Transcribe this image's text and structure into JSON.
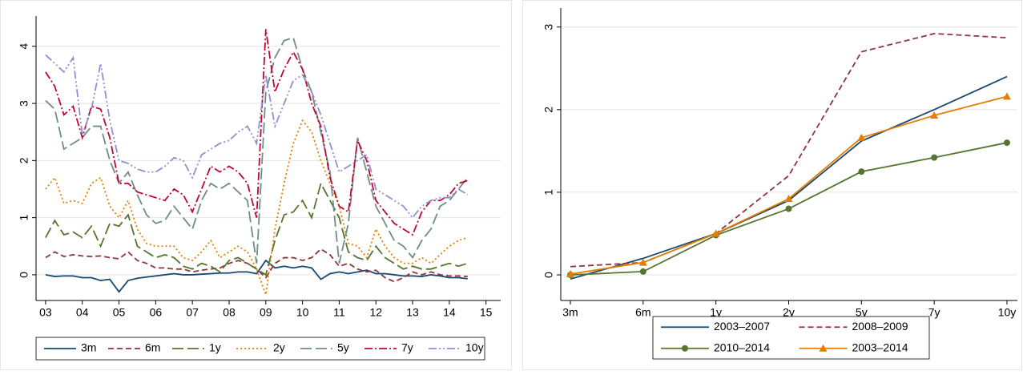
{
  "chart_data": [
    {
      "type": "line",
      "x": [
        2003,
        2003.25,
        2003.5,
        2003.75,
        2004,
        2004.25,
        2004.5,
        2004.75,
        2005,
        2005.25,
        2005.5,
        2005.75,
        2006,
        2006.25,
        2006.5,
        2006.75,
        2007,
        2007.25,
        2007.5,
        2007.75,
        2008,
        2008.25,
        2008.5,
        2008.75,
        2009,
        2009.25,
        2009.5,
        2009.75,
        2010,
        2010.25,
        2010.5,
        2010.75,
        2011,
        2011.25,
        2011.5,
        2011.75,
        2012,
        2012.25,
        2012.5,
        2012.75,
        2013,
        2013.25,
        2013.5,
        2013.75,
        2014,
        2014.25,
        2014.5
      ],
      "xlim": [
        2002.74,
        2015.4
      ],
      "xticks": [
        {
          "value": 2003,
          "label": "03"
        },
        {
          "value": 2004,
          "label": "04"
        },
        {
          "value": 2005,
          "label": "05"
        },
        {
          "value": 2006,
          "label": "06"
        },
        {
          "value": 2007,
          "label": "07"
        },
        {
          "value": 2008,
          "label": "08"
        },
        {
          "value": 2009,
          "label": "09"
        },
        {
          "value": 2010,
          "label": "10"
        },
        {
          "value": 2011,
          "label": "11"
        },
        {
          "value": 2012,
          "label": "12"
        },
        {
          "value": 2013,
          "label": "13"
        },
        {
          "value": 2014,
          "label": "14"
        },
        {
          "value": 2015,
          "label": "15"
        }
      ],
      "ylim": [
        -0.45,
        4.53
      ],
      "yticks": [
        0,
        1,
        2,
        3,
        4
      ],
      "grid": true,
      "series": [
        {
          "name": "3m",
          "color": "#1a476f",
          "dash": "solid",
          "values": [
            0,
            -0.03,
            -0.02,
            -0.02,
            -0.05,
            -0.05,
            -0.1,
            -0.08,
            -0.3,
            -0.1,
            -0.06,
            -0.04,
            -0.02,
            0,
            0.02,
            0,
            0,
            0.01,
            0.02,
            0.03,
            0.03,
            0.05,
            0.05,
            0.02,
            0.25,
            0.12,
            0.15,
            0.12,
            0.15,
            0.12,
            -0.08,
            0.02,
            0.05,
            0.02,
            0.05,
            0.08,
            0.02,
            0.02,
            0,
            -0.02,
            -0.02,
            -0.03,
            0,
            -0.02,
            -0.05,
            -0.05,
            -0.07
          ]
        },
        {
          "name": "6m",
          "color": "#90353b",
          "dash": "dashed",
          "values": [
            0.3,
            0.4,
            0.32,
            0.35,
            0.33,
            0.32,
            0.33,
            0.3,
            0.28,
            0.4,
            0.25,
            0.2,
            0.12,
            0.12,
            0.1,
            0.1,
            0.05,
            0.08,
            0.1,
            0.12,
            0.2,
            0.25,
            0.2,
            0.1,
            -0.05,
            0.2,
            0.3,
            0.3,
            0.25,
            0.3,
            0.45,
            0.35,
            0.15,
            0.2,
            0.1,
            0.05,
            0.08,
            -0.05,
            -0.12,
            -0.05,
            0.05,
            0,
            0.05,
            0,
            -0.02,
            -0.02,
            -0.03
          ]
        },
        {
          "name": "1y",
          "color": "#55752f",
          "dash": "longdash",
          "values": [
            0.65,
            0.95,
            0.7,
            0.75,
            0.65,
            0.85,
            0.5,
            0.9,
            0.85,
            1.05,
            0.5,
            0.4,
            0.3,
            0.35,
            0.3,
            0.15,
            0.1,
            0.2,
            0.15,
            0.05,
            0.25,
            0.3,
            0.2,
            0.1,
            0,
            0.6,
            1.05,
            1.1,
            1.3,
            1.0,
            1.6,
            1.3,
            1.0,
            0.4,
            0.3,
            0.25,
            0.5,
            0.3,
            0.2,
            0.1,
            0.15,
            0.1,
            0.1,
            0.15,
            0.2,
            0.15,
            0.2
          ]
        },
        {
          "name": "2y",
          "color": "#e37e00",
          "dash": "dotted",
          "values": [
            1.5,
            1.7,
            1.25,
            1.3,
            1.25,
            1.6,
            1.7,
            1.2,
            1.0,
            1.3,
            0.8,
            0.55,
            0.5,
            0.5,
            0.5,
            0.3,
            0.25,
            0.4,
            0.6,
            0.3,
            0.4,
            0.5,
            0.4,
            0.1,
            -0.35,
            0.8,
            1.6,
            2.3,
            2.7,
            2.5,
            2.0,
            1.6,
            1.2,
            0.55,
            0.5,
            0.3,
            0.8,
            0.5,
            0.3,
            0.2,
            0.2,
            0.3,
            0.2,
            0.35,
            0.5,
            0.6,
            0.65
          ]
        },
        {
          "name": "5y",
          "color": "#6e8e84",
          "dash": "longdash",
          "values": [
            3.05,
            2.9,
            2.2,
            2.3,
            2.4,
            2.6,
            2.6,
            2.0,
            1.6,
            1.8,
            1.4,
            1.05,
            0.9,
            0.95,
            1.2,
            1.0,
            0.8,
            1.3,
            1.6,
            1.5,
            1.6,
            1.45,
            1.3,
            0.2,
            3.2,
            3.8,
            4.1,
            4.15,
            3.6,
            3.2,
            2.5,
            1.8,
            0.2,
            0.9,
            2.4,
            1.8,
            1.2,
            0.9,
            0.6,
            0.5,
            0.3,
            0.6,
            0.8,
            1.2,
            1.3,
            1.5,
            1.7
          ]
        },
        {
          "name": "7y",
          "color": "#c10534",
          "dash": "dashdot",
          "values": [
            3.55,
            3.3,
            2.8,
            2.95,
            2.4,
            2.95,
            2.9,
            2.4,
            1.6,
            1.6,
            1.45,
            1.4,
            1.35,
            1.3,
            1.5,
            1.4,
            1.1,
            1.5,
            1.9,
            1.8,
            1.9,
            1.8,
            1.6,
            1.0,
            4.3,
            3.2,
            3.6,
            3.9,
            3.6,
            3.0,
            2.6,
            1.7,
            1.2,
            1.1,
            2.35,
            2.0,
            1.3,
            1.1,
            0.9,
            0.8,
            0.7,
            1.1,
            1.3,
            1.3,
            1.4,
            1.6,
            1.65
          ]
        },
        {
          "name": "10y",
          "color": "#938dd2",
          "dash": "dashdotdot",
          "values": [
            3.85,
            3.7,
            3.55,
            3.8,
            2.45,
            2.9,
            3.7,
            2.7,
            2.0,
            1.95,
            1.85,
            1.8,
            1.8,
            1.9,
            2.05,
            2.0,
            1.7,
            2.1,
            2.2,
            2.3,
            2.35,
            2.5,
            2.6,
            2.3,
            3.5,
            2.6,
            3.0,
            3.4,
            3.5,
            3.2,
            2.8,
            2.3,
            1.8,
            1.9,
            2.0,
            2.1,
            1.5,
            1.4,
            1.3,
            1.2,
            1.0,
            1.2,
            1.3,
            1.35,
            1.35,
            1.5,
            1.4
          ]
        }
      ]
    },
    {
      "type": "line",
      "categories": [
        "3m",
        "6m",
        "1y",
        "2y",
        "5y",
        "7y",
        "10y"
      ],
      "ylim": [
        -0.31,
        3.23
      ],
      "yticks": [
        0,
        1,
        2,
        3
      ],
      "grid": true,
      "series": [
        {
          "name": "2003–2007",
          "color": "#1a476f",
          "dash": "solid",
          "values": [
            -0.05,
            0.2,
            0.5,
            0.9,
            1.62,
            2.0,
            2.4
          ]
        },
        {
          "name": "2008–2009",
          "color": "#90353b",
          "dash": "dashed",
          "values": [
            0.1,
            0.15,
            0.5,
            1.2,
            2.7,
            2.92,
            2.87
          ]
        },
        {
          "name": "2010–2014",
          "color": "#55752f",
          "dash": "solid",
          "marker": "circle",
          "values": [
            0,
            0.04,
            0.48,
            0.8,
            1.25,
            1.42,
            1.6
          ]
        },
        {
          "name": "2003–2014",
          "color": "#e37e00",
          "dash": "solid",
          "marker": "triangle",
          "values": [
            0.01,
            0.15,
            0.5,
            0.92,
            1.66,
            1.93,
            2.16
          ]
        }
      ]
    }
  ]
}
